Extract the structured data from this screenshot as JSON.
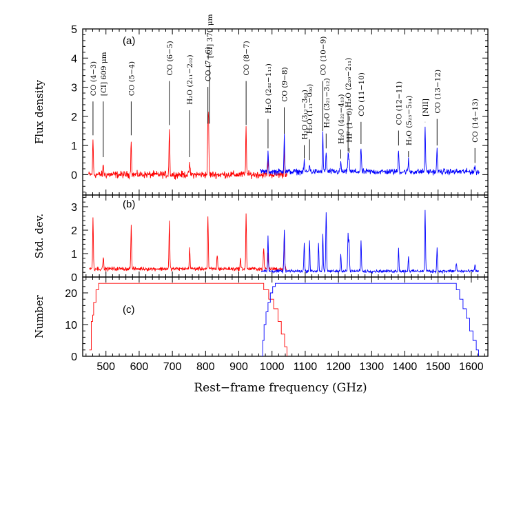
{
  "chart_data": {
    "type": "line",
    "xlabel": "Rest−frame frequency (GHz)",
    "xlim": [
      430,
      1650
    ],
    "x_ticks": [
      500,
      600,
      700,
      800,
      900,
      1000,
      1100,
      1200,
      1300,
      1400,
      1500,
      1600
    ],
    "colors": {
      "low": "#ff0000",
      "high": "#0000ff",
      "axis": "#000000"
    },
    "panels": [
      {
        "id": "a",
        "label": "(a)",
        "ylabel": "Flux density",
        "ylim": [
          -0.7,
          5
        ],
        "y_ticks": [
          0,
          1,
          2,
          3,
          4,
          5
        ],
        "series": [
          {
            "color": "red",
            "x_range": [
              448,
              1045
            ],
            "baseline": 0.0,
            "noise": 0.12,
            "peaks": [
              [
                461,
                1.2
              ],
              [
                492,
                0.35
              ],
              [
                576,
                1.2
              ],
              [
                691,
                1.6
              ],
              [
                752,
                0.4
              ],
              [
                807,
                1.65
              ],
              [
                809,
                1.55
              ],
              [
                922,
                1.65
              ],
              [
                988,
                0.5
              ],
              [
                1037,
                1.0
              ]
            ]
          },
          {
            "color": "blue",
            "x_range": [
              965,
              1625
            ],
            "baseline": 0.1,
            "noise": 0.1,
            "peaks": [
              [
                988,
                0.7
              ],
              [
                1037,
                1.3
              ],
              [
                1097,
                0.35
              ],
              [
                1113,
                0.3
              ],
              [
                1153,
                1.3
              ],
              [
                1163,
                0.7
              ],
              [
                1207,
                0.35
              ],
              [
                1229,
                0.6
              ],
              [
                1232,
                0.5
              ],
              [
                1268,
                0.85
              ],
              [
                1381,
                0.8
              ],
              [
                1411,
                0.4
              ],
              [
                1461,
                1.6
              ],
              [
                1497,
                0.8
              ],
              [
                1611,
                0.2
              ]
            ]
          }
        ],
        "annotations": [
          {
            "label": "CO (4−3)",
            "x": 461,
            "tip": 1.35,
            "y": 2.7
          },
          {
            "label": "[CI] 609 μm",
            "x": 492,
            "tip": 0.6,
            "y": 2.7
          },
          {
            "label": "CO (5−4)",
            "x": 576,
            "tip": 1.35,
            "y": 2.7
          },
          {
            "label": "CO (6−5)",
            "x": 691,
            "tip": 1.7,
            "y": 3.4
          },
          {
            "label": "H₂O (2₁₁−2₀₂)",
            "x": 752,
            "tip": 0.6,
            "y": 2.4
          },
          {
            "label": "CO (7−6)",
            "x": 807,
            "tip": 1.75,
            "y": 3.2
          },
          {
            "label": "[CI] 370 μm",
            "x": 812,
            "tip": 1.75,
            "y": 4.0
          },
          {
            "label": "CO (8−7)",
            "x": 922,
            "tip": 1.7,
            "y": 3.4
          },
          {
            "label": "H₂O (2₀₂−1₁₁)",
            "x": 988,
            "tip": 0.9,
            "y": 2.1
          },
          {
            "label": "CO (9−8)",
            "x": 1037,
            "tip": 1.4,
            "y": 2.5
          },
          {
            "label": "H₂O (3₁₂−3₀₃)",
            "x": 1097,
            "tip": 0.55,
            "y": 1.2
          },
          {
            "label": "H₂O (1₁₁−0₀₀)",
            "x": 1113,
            "tip": 0.5,
            "y": 1.4
          },
          {
            "label": "CO (10−9)",
            "x": 1153,
            "tip": 1.5,
            "y": 3.4
          },
          {
            "label": "H₂O (3₂₁−3₁₂)",
            "x": 1163,
            "tip": 0.9,
            "y": 1.6
          },
          {
            "label": "H₂O (4₂₂−4₁₃)",
            "x": 1207,
            "tip": 0.55,
            "y": 1.05
          },
          {
            "label": "HF (1−0)",
            "x": 1232,
            "tip": 0.75,
            "y": 1.1
          },
          {
            "label": "H₂O (2₂₀−2₁₁)",
            "x": 1229,
            "tip": 0.8,
            "y": 2.3
          },
          {
            "label": "CO (11−10)",
            "x": 1268,
            "tip": 1.05,
            "y": 2.0
          },
          {
            "label": "CO (12−11)",
            "x": 1381,
            "tip": 1.0,
            "y": 1.7
          },
          {
            "label": "H₂O (5₂₃−5₁₄)",
            "x": 1411,
            "tip": 0.6,
            "y": 1.0
          },
          {
            "label": "[NII]",
            "x": 1461,
            "tip": 1.8,
            "y": 2.0
          },
          {
            "label": "CO (13−12)",
            "x": 1497,
            "tip": 1.0,
            "y": 2.1
          },
          {
            "label": "CO (14−13)",
            "x": 1611,
            "tip": 0.4,
            "y": 1.1
          }
        ]
      },
      {
        "id": "b",
        "label": "(b)",
        "ylabel": "Std. dev.",
        "ylim": [
          0,
          3.5
        ],
        "y_ticks": [
          0,
          1,
          2,
          3
        ],
        "series": [
          {
            "color": "red",
            "x_range": [
              450,
              1045
            ],
            "baseline": 0.35,
            "noise": 0.08,
            "peaks": [
              [
                461,
                2.2
              ],
              [
                492,
                0.5
              ],
              [
                576,
                1.9
              ],
              [
                691,
                2.0
              ],
              [
                752,
                0.9
              ],
              [
                807,
                2.25
              ],
              [
                835,
                0.6
              ],
              [
                905,
                0.45
              ],
              [
                922,
                2.3
              ],
              [
                975,
                0.9
              ],
              [
                988,
                0.6
              ],
              [
                1037,
                1.5
              ]
            ]
          },
          {
            "color": "blue",
            "x_range": [
              968,
              1622
            ],
            "baseline": 0.25,
            "noise": 0.06,
            "peaks": [
              [
                988,
                1.5
              ],
              [
                1037,
                1.8
              ],
              [
                1097,
                1.2
              ],
              [
                1113,
                1.3
              ],
              [
                1140,
                1.2
              ],
              [
                1153,
                1.6
              ],
              [
                1163,
                2.55
              ],
              [
                1207,
                0.8
              ],
              [
                1229,
                1.6
              ],
              [
                1232,
                1.3
              ],
              [
                1268,
                1.3
              ],
              [
                1381,
                1.0
              ],
              [
                1411,
                0.6
              ],
              [
                1461,
                2.65
              ],
              [
                1497,
                1.0
              ],
              [
                1555,
                0.35
              ],
              [
                1611,
                0.3
              ]
            ]
          }
        ]
      },
      {
        "id": "c",
        "label": "(c)",
        "ylabel": "Number",
        "ylim": [
          0,
          25
        ],
        "y_ticks": [
          0,
          10,
          20
        ],
        "series": [
          {
            "color": "red",
            "points": [
              [
                450,
                2
              ],
              [
                456,
                11
              ],
              [
                460,
                13
              ],
              [
                463,
                17
              ],
              [
                470,
                21
              ],
              [
                478,
                23
              ],
              [
                960,
                23
              ],
              [
                975,
                21
              ],
              [
                990,
                18
              ],
              [
                1005,
                15
              ],
              [
                1018,
                11
              ],
              [
                1028,
                7
              ],
              [
                1038,
                3
              ],
              [
                1045,
                0
              ]
            ]
          },
          {
            "color": "blue",
            "points": [
              [
                968,
                0
              ],
              [
                972,
                5
              ],
              [
                976,
                10
              ],
              [
                982,
                14
              ],
              [
                988,
                17
              ],
              [
                995,
                20
              ],
              [
                1002,
                22
              ],
              [
                1010,
                23
              ],
              [
                1545,
                23
              ],
              [
                1555,
                21
              ],
              [
                1565,
                18
              ],
              [
                1575,
                15
              ],
              [
                1585,
                12
              ],
              [
                1595,
                8
              ],
              [
                1605,
                5
              ],
              [
                1615,
                2
              ],
              [
                1622,
                0
              ]
            ]
          }
        ]
      }
    ]
  }
}
